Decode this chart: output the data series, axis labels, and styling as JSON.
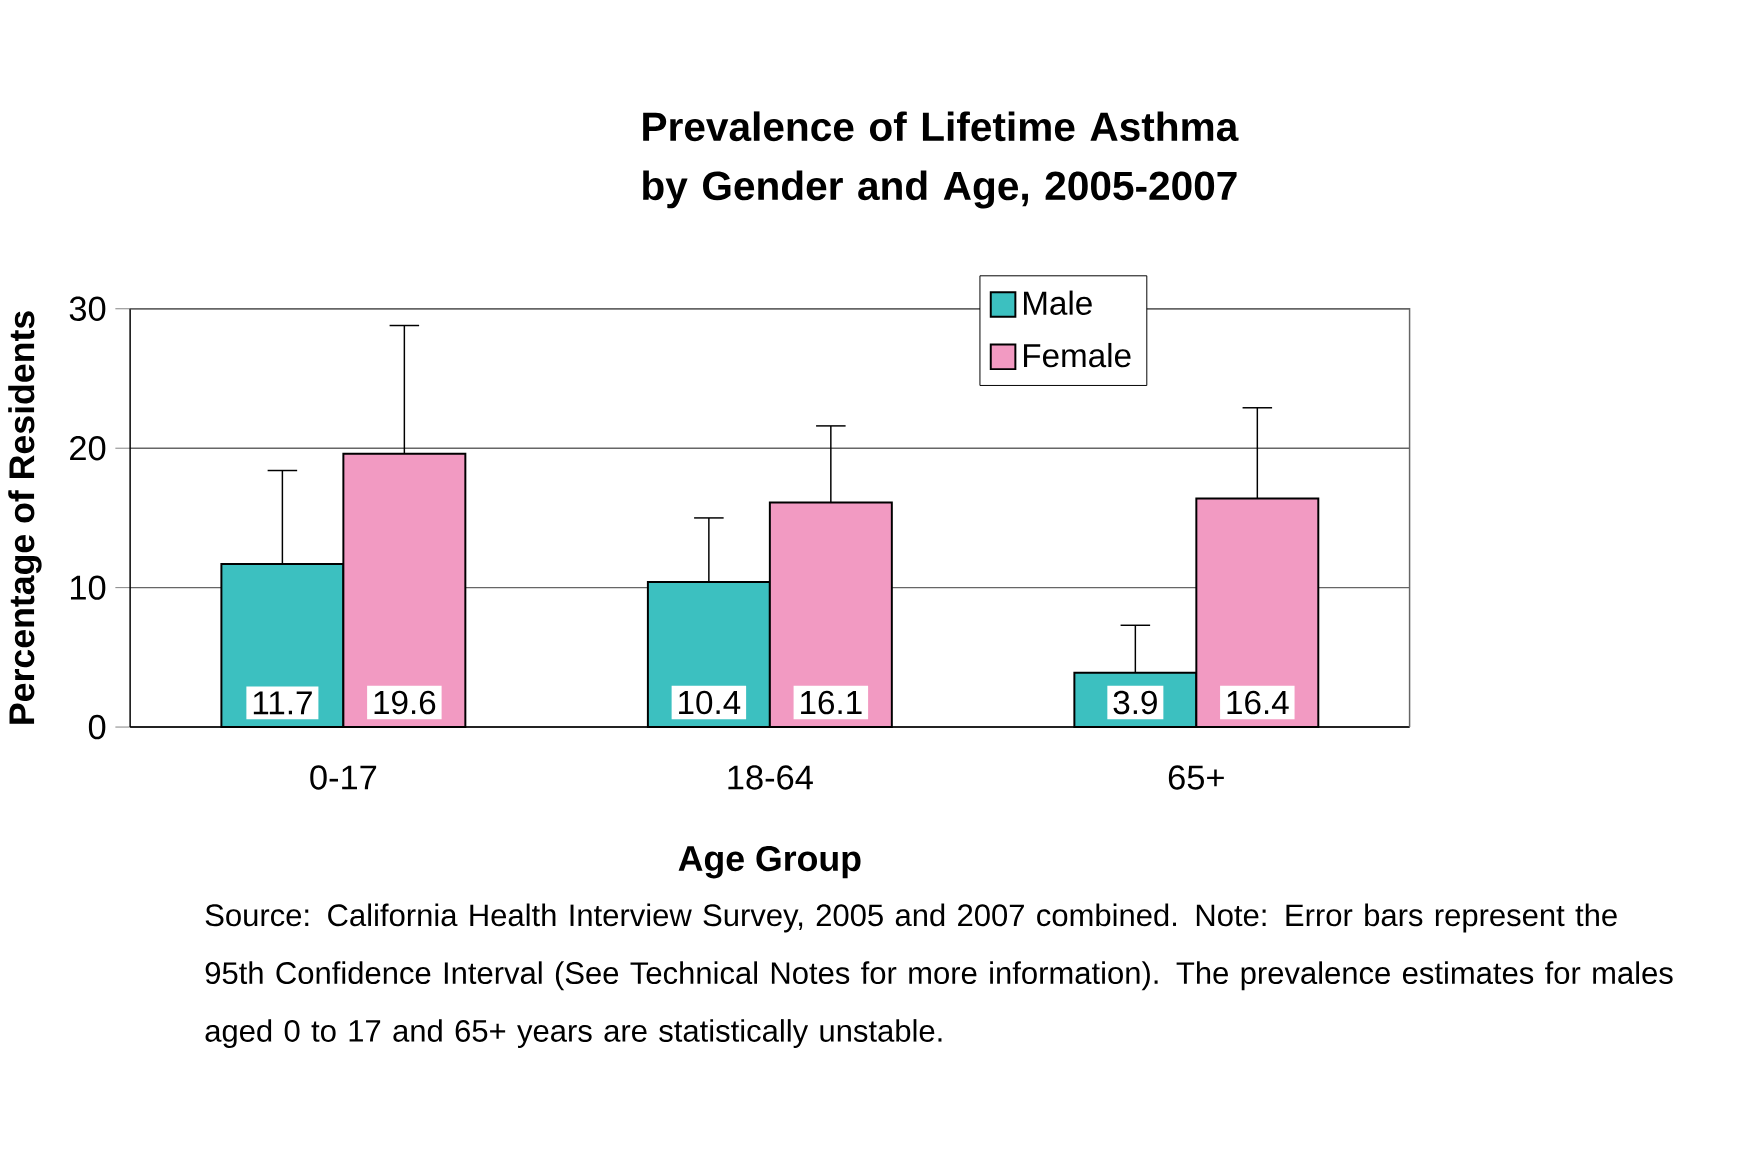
{
  "chart_data": {
    "type": "bar",
    "title": "Prevalence of Lifetime Asthma by Gender and Age, 2005-2007",
    "xlabel": "Age Group",
    "ylabel": "Percentage of Residents",
    "categories": [
      "0-17",
      "18-64",
      "65+"
    ],
    "series": [
      {
        "name": "Male",
        "color": "#3cc0c0",
        "values": [
          11.7,
          10.4,
          3.9
        ],
        "errors": [
          [
            11.7,
            18.4
          ],
          [
            10.4,
            15.0
          ],
          [
            3.9,
            7.3
          ]
        ]
      },
      {
        "name": "Female",
        "color": "#f29ac2",
        "values": [
          19.6,
          16.1,
          16.4
        ],
        "errors": [
          [
            19.6,
            28.8
          ],
          [
            16.1,
            21.6
          ],
          [
            16.4,
            22.9
          ]
        ]
      }
    ],
    "ylim": [
      0,
      30
    ],
    "yticks": [
      0,
      10,
      20,
      30
    ],
    "grid": "y",
    "legend": "top right",
    "data_labels": true,
    "annotations": [
      "Source: California Health Interview Survey, 2005 and 2007 combined.  Note: Error bars represent the 95th Confidence Interval (See Technical Notes for more information).  The prevalence estimates for males aged 0 to 17 and 65+ years are statistically unstable."
    ]
  }
}
